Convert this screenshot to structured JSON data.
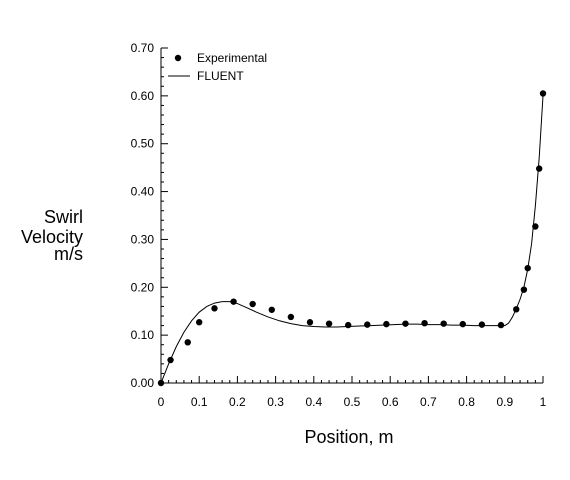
{
  "chart_data": {
    "type": "line",
    "title": "",
    "xlabel": "Position, m",
    "ylabel": [
      "Swirl",
      "Velocity",
      "m/s"
    ],
    "xlim": [
      0,
      1
    ],
    "ylim": [
      0,
      0.7
    ],
    "x_ticks": [
      "0",
      "0.1",
      "0.2",
      "0.3",
      "0.4",
      "0.5",
      "0.6",
      "0.7",
      "0.8",
      "0.9",
      "1"
    ],
    "y_ticks": [
      "0.00",
      "0.10",
      "0.20",
      "0.30",
      "0.40",
      "0.50",
      "0.60",
      "0.70"
    ],
    "grid": false,
    "legend_position": "top-left",
    "series": [
      {
        "name": "Experimental",
        "kind": "scatter",
        "marker": "filled-circle",
        "color": "#000000",
        "x": [
          0.0,
          0.025,
          0.07,
          0.1,
          0.14,
          0.19,
          0.24,
          0.29,
          0.34,
          0.39,
          0.44,
          0.49,
          0.54,
          0.59,
          0.64,
          0.69,
          0.74,
          0.79,
          0.84,
          0.89,
          0.93,
          0.95,
          0.96,
          0.98,
          0.99,
          1.0
        ],
        "y": [
          0.0,
          0.048,
          0.085,
          0.127,
          0.156,
          0.17,
          0.165,
          0.153,
          0.138,
          0.127,
          0.124,
          0.121,
          0.122,
          0.123,
          0.124,
          0.125,
          0.124,
          0.123,
          0.122,
          0.121,
          0.154,
          0.195,
          0.24,
          0.327,
          0.448,
          0.605
        ]
      },
      {
        "name": "FLUENT",
        "kind": "line",
        "color": "#000000",
        "x": [
          0.0,
          0.02,
          0.04,
          0.06,
          0.08,
          0.1,
          0.12,
          0.14,
          0.16,
          0.18,
          0.2,
          0.22,
          0.25,
          0.28,
          0.31,
          0.34,
          0.37,
          0.4,
          0.43,
          0.46,
          0.49,
          0.52,
          0.55,
          0.58,
          0.61,
          0.64,
          0.67,
          0.7,
          0.73,
          0.76,
          0.79,
          0.82,
          0.85,
          0.88,
          0.9,
          0.91,
          0.92,
          0.93,
          0.94,
          0.95,
          0.96,
          0.97,
          0.98,
          0.99,
          1.0
        ],
        "y": [
          0.0,
          0.04,
          0.076,
          0.106,
          0.13,
          0.148,
          0.16,
          0.167,
          0.17,
          0.17,
          0.166,
          0.159,
          0.148,
          0.138,
          0.13,
          0.124,
          0.12,
          0.118,
          0.117,
          0.117,
          0.118,
          0.119,
          0.12,
          0.121,
          0.122,
          0.123,
          0.123,
          0.122,
          0.122,
          0.121,
          0.121,
          0.12,
          0.12,
          0.12,
          0.12,
          0.125,
          0.138,
          0.155,
          0.175,
          0.2,
          0.238,
          0.29,
          0.37,
          0.47,
          0.6
        ]
      }
    ]
  }
}
